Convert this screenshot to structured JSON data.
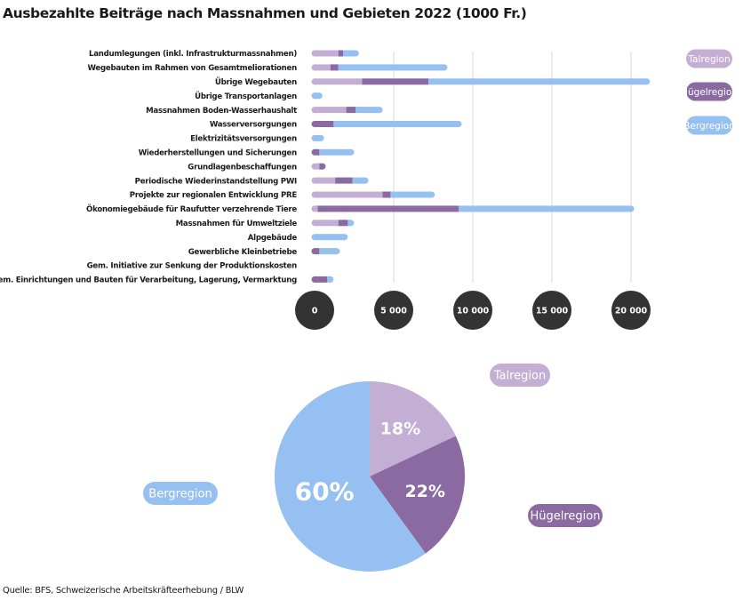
{
  "title": "Ausbezahlte Beiträge nach Massnahmen und Gebieten 2022 (1000 Fr.)",
  "source": "Quelle: BFS, Schweizerische Arbeitskräfteerhebung / BLW",
  "colors": {
    "tal": "#c3aed4",
    "huegel": "#8a6aa1",
    "berg": "#96bff2",
    "grid": "#d9d9d9",
    "tickBubble": "#333333"
  },
  "chart_data": [
    {
      "type": "bar",
      "stacked": true,
      "orientation": "horizontal",
      "categories": [
        "Landumlegungen (inkl. Infrastrukturmassnahmen)",
        "Wegebauten im Rahmen von Gesamtmeliorationen",
        "Übrige Wegebauten",
        "Übrige Transportanlagen",
        "Massnahmen Boden-Wasserhaushalt",
        "Wasserversorgungen",
        "Elektrizitätsversorgungen",
        "Wiederherstellungen und Sicherungen",
        "Grundlagenbeschaffungen",
        "Periodische Wiederinstandstellung PWI",
        "Projekte zur regionalen Entwicklung PRE",
        "Ökonomiegebäude für Raufutter verzehrende Tiere",
        "Massnahmen für Umweltziele",
        "Alpgebäude",
        "Gewerbliche Kleinbetriebe",
        "Gem. Initiative zur Senkung der Produktionskosten",
        "Gem. Einrichtungen und Bauten für Verarbeitung, Lagerung, Vermarktung"
      ],
      "series": [
        {
          "name": "Talregion",
          "values": [
            1500,
            1000,
            3000,
            0,
            2000,
            0,
            0,
            0,
            300,
            1300,
            4300,
            200,
            1500,
            0,
            0,
            0,
            0
          ]
        },
        {
          "name": "Hügelregion",
          "values": [
            300,
            500,
            4200,
            0,
            600,
            1200,
            0,
            300,
            200,
            1100,
            500,
            8900,
            600,
            0,
            300,
            0,
            800
          ]
        },
        {
          "name": "Bergregion",
          "values": [
            800,
            6700,
            13800,
            300,
            1500,
            7900,
            400,
            2000,
            0,
            800,
            2600,
            10900,
            200,
            1900,
            1100,
            0,
            200
          ]
        }
      ],
      "xlim": [
        0,
        21500
      ],
      "xticks": [
        "0",
        "5 000",
        "10 000",
        "15 000",
        "20 000"
      ],
      "xtick_values": [
        0,
        5000,
        10000,
        15000,
        20000
      ],
      "grid": true,
      "legend": [
        "Talregion",
        "Hügelregion",
        "Bergregion"
      ],
      "legend_position": "right"
    },
    {
      "type": "pie",
      "slices": [
        {
          "label": "Talregion",
          "value": 18,
          "text": "18%"
        },
        {
          "label": "Hügelregion",
          "value": 22,
          "text": "22%"
        },
        {
          "label": "Bergregion",
          "value": 60,
          "text": "60%"
        }
      ]
    }
  ]
}
